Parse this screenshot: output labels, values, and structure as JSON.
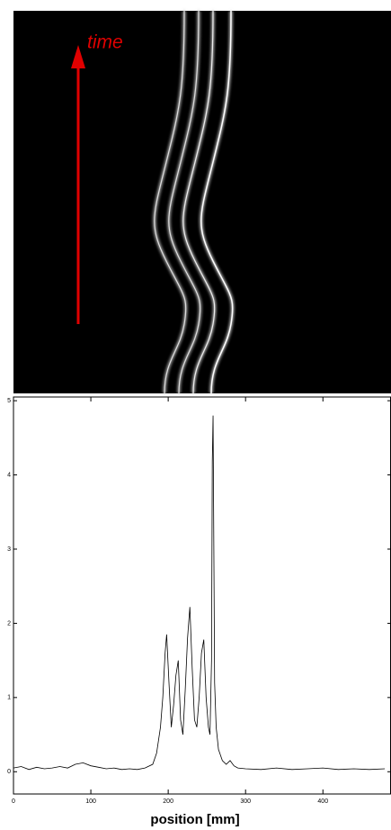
{
  "image": {
    "annotation": "time"
  },
  "chart_data": {
    "type": "line",
    "xlabel": "position [mm]",
    "x": [
      0,
      10,
      20,
      30,
      40,
      50,
      60,
      70,
      80,
      90,
      100,
      110,
      120,
      130,
      140,
      150,
      160,
      170,
      180,
      185,
      190,
      193,
      196,
      198,
      201,
      204,
      207,
      210,
      213,
      216,
      219,
      222,
      225,
      228,
      231,
      234,
      237,
      240,
      243,
      246,
      249,
      252,
      254,
      256,
      257,
      258,
      259,
      260,
      262,
      265,
      270,
      275,
      280,
      285,
      290,
      300,
      320,
      340,
      360,
      380,
      400,
      420,
      440,
      460,
      480
    ],
    "values": [
      0.05,
      0.07,
      0.03,
      0.06,
      0.04,
      0.05,
      0.07,
      0.05,
      0.1,
      0.12,
      0.08,
      0.06,
      0.04,
      0.05,
      0.03,
      0.04,
      0.03,
      0.05,
      0.1,
      0.25,
      0.6,
      1.0,
      1.6,
      1.85,
      1.2,
      0.6,
      0.9,
      1.3,
      1.5,
      0.7,
      0.5,
      1.1,
      1.8,
      2.22,
      1.4,
      0.7,
      0.6,
      1.0,
      1.6,
      1.78,
      1.0,
      0.6,
      0.5,
      1.5,
      4.18,
      4.8,
      3.0,
      1.2,
      0.6,
      0.3,
      0.15,
      0.1,
      0.15,
      0.08,
      0.05,
      0.04,
      0.03,
      0.05,
      0.03,
      0.04,
      0.05,
      0.03,
      0.04,
      0.03,
      0.04
    ],
    "color": "#000000",
    "xlim": [
      0,
      488
    ],
    "ylim": [
      -0.3,
      5.05
    ],
    "xticks": [
      0,
      100,
      200,
      300,
      400
    ],
    "yticks": [
      0,
      1,
      2,
      3,
      4,
      5
    ]
  }
}
